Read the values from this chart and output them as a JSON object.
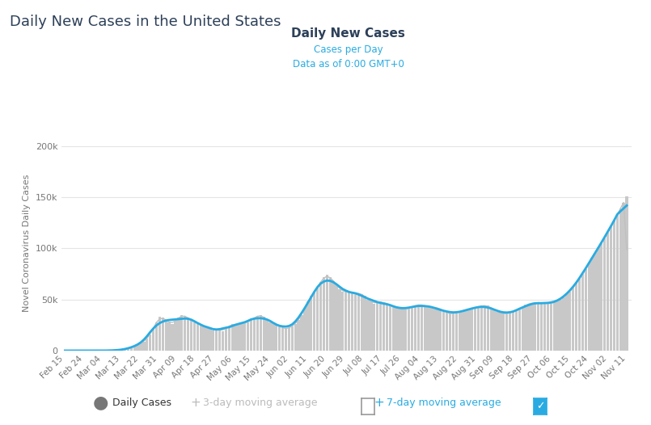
{
  "title_main": "Daily New Cases in the United States",
  "title_chart": "Daily New Cases",
  "subtitle1": "Cases per Day",
  "subtitle2": "Data as of 0:00 GMT+0",
  "ylabel": "Novel Coronavirus Daily Cases",
  "background_color": "#ffffff",
  "bar_color": "#c8c8c8",
  "line_7day_color": "#29abe2",
  "line_3day_color": "#c0c0c0",
  "title_main_color": "#2d4059",
  "title_chart_color": "#2d4059",
  "subtitle_color": "#29abe2",
  "ylim": [
    0,
    210000
  ],
  "yticks": [
    0,
    50000,
    100000,
    150000,
    200000
  ],
  "ytick_labels": [
    "0",
    "50k",
    "100k",
    "150k",
    "200k"
  ],
  "x_tick_labels": [
    "Feb 15",
    "Feb 24",
    "Mar 04",
    "Mar 13",
    "Mar 22",
    "Mar 31",
    "Apr 09",
    "Apr 18",
    "Apr 27",
    "May 06",
    "May 15",
    "May 24",
    "Jun 02",
    "Jun 11",
    "Jun 20",
    "Jun 29",
    "Jul 08",
    "Jul 17",
    "Jul 26",
    "Aug 04",
    "Aug 13",
    "Aug 22",
    "Aug 31",
    "Sep 09",
    "Sep 18",
    "Sep 27",
    "Oct 06",
    "Oct 15",
    "Oct 24",
    "Nov 02",
    "Nov 11"
  ],
  "daily_cases": [
    0,
    1,
    1,
    1,
    2,
    2,
    3,
    3,
    4,
    5,
    8,
    12,
    20,
    35,
    55,
    100,
    200,
    400,
    800,
    1200,
    1800,
    2800,
    4000,
    5500,
    7000,
    9000,
    12000,
    16000,
    22000,
    28000,
    33000,
    32000,
    30000,
    28000,
    26000,
    29000,
    32000,
    35000,
    34000,
    32000,
    30000,
    28000,
    27000,
    26000,
    24000,
    22000,
    21000,
    20000,
    21000,
    20000,
    19000,
    22000,
    24000,
    26000,
    25000,
    25000,
    28000,
    27000,
    28000,
    30000,
    32000,
    34000,
    35000,
    33000,
    30000,
    28000,
    27000,
    26000,
    24000,
    22000,
    21000,
    22000,
    24000,
    26000,
    30000,
    35000,
    42000,
    48000,
    54000,
    58000,
    62000,
    67000,
    72000,
    74000,
    72000,
    68000,
    65000,
    60000,
    58000,
    58000,
    57000,
    56000,
    57000,
    56000,
    55000,
    54000,
    50000,
    48000,
    46000,
    47000,
    48000,
    47000,
    46000,
    45000,
    43000,
    42000,
    41000,
    40000,
    40000,
    42000,
    43000,
    44000,
    45000,
    45000,
    44000,
    43000,
    42000,
    42000,
    42000,
    41000,
    39000,
    37000,
    36000,
    36000,
    37000,
    38000,
    39000,
    40000,
    40000,
    41000,
    42000,
    43000,
    44000,
    44000,
    44000,
    42000,
    40000,
    38000,
    37000,
    36000,
    36000,
    37000,
    38000,
    39000,
    40000,
    42000,
    45000,
    46000,
    46000,
    47000,
    47000,
    47000,
    46000,
    46000,
    46000,
    47000,
    48000,
    50000,
    52000,
    55000,
    58000,
    62000,
    66000,
    70000,
    75000,
    80000,
    86000,
    91000,
    96000,
    101000,
    106000,
    110000,
    115000,
    122000,
    128000,
    133000,
    139000,
    145000,
    151000
  ]
}
